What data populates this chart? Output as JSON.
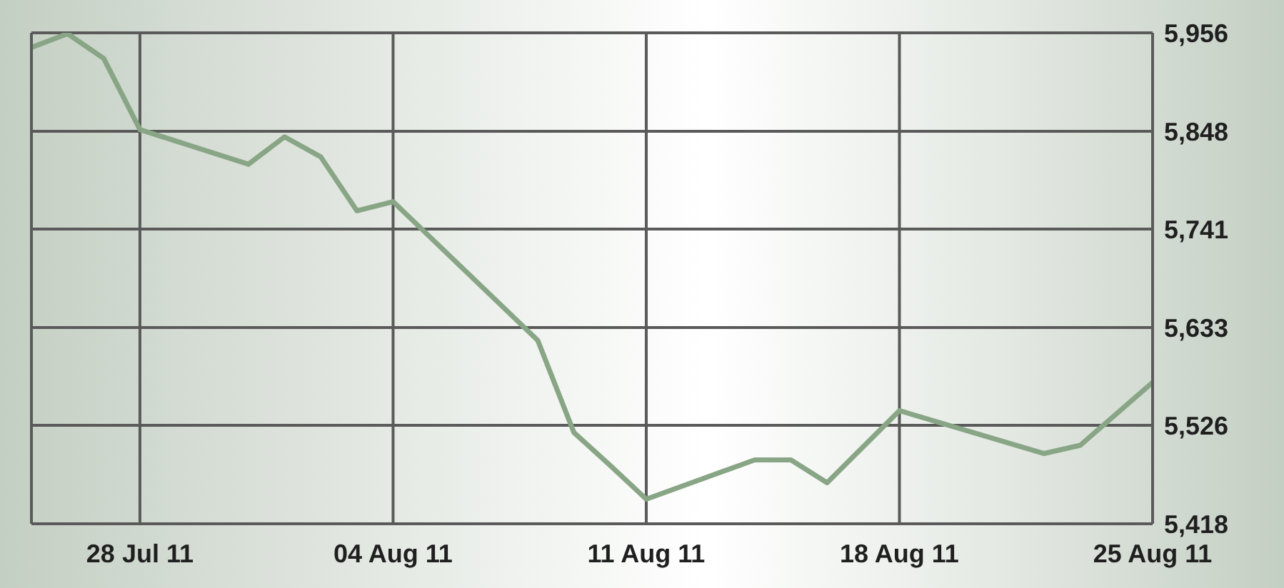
{
  "chart_data": {
    "type": "line",
    "x": [
      "--07-25",
      "--07-26",
      "--07-27",
      "--07-28",
      "--07-31",
      "--08-01",
      "--08-02",
      "--08-03",
      "--08-04",
      "--08-08",
      "--08-09",
      "--08-10",
      "--08-11",
      "--08-14",
      "--08-15",
      "--08-16",
      "--08-18",
      "--08-22",
      "--08-23",
      "--08-25"
    ],
    "series": [
      {
        "color": "#88a585",
        "values": [
          5940,
          5955,
          5928,
          5850,
          5812,
          5842,
          5820,
          5761,
          5771,
          5619,
          5518,
          5482,
          5445,
          5488,
          5488,
          5463,
          5542,
          5495,
          5504,
          5573
        ]
      }
    ],
    "xlim": [
      "--07-25",
      "--08-25"
    ],
    "xticks": [
      {
        "value": "--07-28",
        "label": "28 Jul 11"
      },
      {
        "value": "--08-04",
        "label": "04 Aug 11"
      },
      {
        "value": "--08-11",
        "label": "11 Aug 11"
      },
      {
        "value": "--08-18",
        "label": "18 Aug 11"
      },
      {
        "value": "--08-25",
        "label": "25 Aug 11"
      }
    ],
    "ylim": [
      5418,
      5956
    ],
    "yticks": [
      {
        "value": 5418,
        "label": "5,418"
      },
      {
        "value": 5526,
        "label": "5,526"
      },
      {
        "value": 5633,
        "label": "5,633"
      },
      {
        "value": 5741,
        "label": "5,741"
      },
      {
        "value": 5848,
        "label": "5,848"
      },
      {
        "value": 5956,
        "label": "5,956"
      }
    ],
    "grid": true,
    "line_style": "solid"
  }
}
